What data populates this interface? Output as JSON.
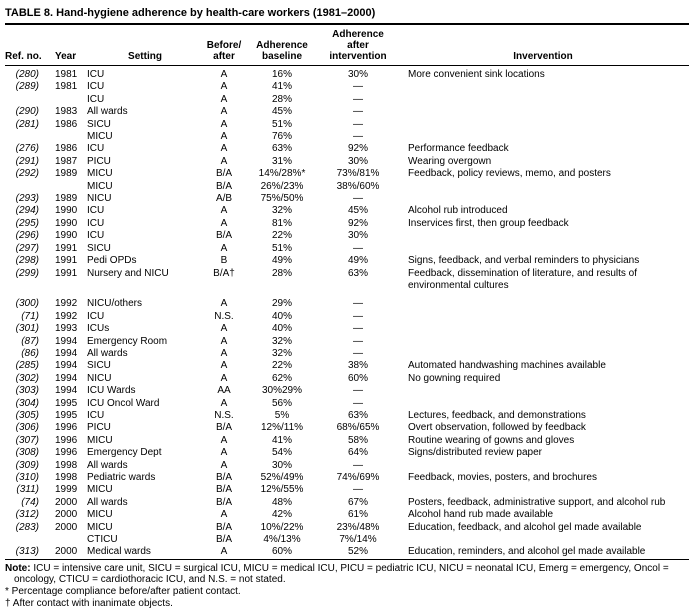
{
  "title": "TABLE 8. Hand-hygiene adherence by health-care workers (1981–2000)",
  "table": {
    "columns": [
      {
        "key": "ref",
        "label": "Ref. no."
      },
      {
        "key": "year",
        "label": "Year"
      },
      {
        "key": "setting",
        "label": "Setting"
      },
      {
        "key": "before_after",
        "label": "Before/\nafter"
      },
      {
        "key": "baseline",
        "label": "Adherence\nbaseline"
      },
      {
        "key": "after",
        "label": "Adherence\nafter\nintervention"
      },
      {
        "key": "intervention",
        "label": "Invervention"
      }
    ],
    "rows": [
      {
        "ref": "(280)",
        "year": "1981",
        "setting": "ICU",
        "before_after": "A",
        "baseline": "16%",
        "after": "30%",
        "intervention": "More convenient sink locations"
      },
      {
        "ref": "(289)",
        "year": "1981",
        "setting": "ICU",
        "before_after": "A",
        "baseline": "41%",
        "after": "—",
        "intervention": ""
      },
      {
        "ref": "",
        "year": "",
        "setting": "ICU",
        "before_after": "A",
        "baseline": "28%",
        "after": "—",
        "intervention": ""
      },
      {
        "ref": "(290)",
        "year": "1983",
        "setting": "All wards",
        "before_after": "A",
        "baseline": "45%",
        "after": "—",
        "intervention": ""
      },
      {
        "ref": "(281)",
        "year": "1986",
        "setting": "SICU",
        "before_after": "A",
        "baseline": "51%",
        "after": "—",
        "intervention": ""
      },
      {
        "ref": "",
        "year": "",
        "setting": "MICU",
        "before_after": "A",
        "baseline": "76%",
        "after": "—",
        "intervention": ""
      },
      {
        "ref": "(276)",
        "year": "1986",
        "setting": "ICU",
        "before_after": "A",
        "baseline": "63%",
        "after": "92%",
        "intervention": "Performance feedback"
      },
      {
        "ref": "(291)",
        "year": "1987",
        "setting": "PICU",
        "before_after": "A",
        "baseline": "31%",
        "after": "30%",
        "intervention": "Wearing overgown"
      },
      {
        "ref": "(292)",
        "year": "1989",
        "setting": "MICU",
        "before_after": "B/A",
        "baseline": "14%/28%*",
        "after": "73%/81%",
        "intervention": "Feedback, policy reviews, memo, and posters"
      },
      {
        "ref": "",
        "year": "",
        "setting": "MICU",
        "before_after": "B/A",
        "baseline": "26%/23%",
        "after": "38%/60%",
        "intervention": ""
      },
      {
        "ref": "(293)",
        "year": "1989",
        "setting": "NICU",
        "before_after": "A/B",
        "baseline": "75%/50%",
        "after": "—",
        "intervention": ""
      },
      {
        "ref": "(294)",
        "year": "1990",
        "setting": "ICU",
        "before_after": "A",
        "baseline": "32%",
        "after": "45%",
        "intervention": "Alcohol rub introduced"
      },
      {
        "ref": "(295)",
        "year": "1990",
        "setting": "ICU",
        "before_after": "A",
        "baseline": "81%",
        "after": "92%",
        "intervention": "Inservices first, then group feedback"
      },
      {
        "ref": "(296)",
        "year": "1990",
        "setting": "ICU",
        "before_after": "B/A",
        "baseline": "22%",
        "after": "30%",
        "intervention": ""
      },
      {
        "ref": "(297)",
        "year": "1991",
        "setting": "SICU",
        "before_after": "A",
        "baseline": "51%",
        "after": "—",
        "intervention": ""
      },
      {
        "ref": "(298)",
        "year": "1991",
        "setting": "Pedi OPDs",
        "before_after": "B",
        "baseline": "49%",
        "after": "49%",
        "intervention": "Signs, feedback, and verbal reminders to physicians"
      },
      {
        "ref": "(299)",
        "year": "1991",
        "setting": "Nursery and NICU",
        "before_after": "B/A†",
        "baseline": "28%",
        "after": "63%",
        "intervention": "Feedback, dissemination of literature, and results of environmental cultures",
        "gap_after": true
      },
      {
        "ref": "(300)",
        "year": "1992",
        "setting": "NICU/others",
        "before_after": "A",
        "baseline": "29%",
        "after": "—",
        "intervention": ""
      },
      {
        "ref": "(71)",
        "year": "1992",
        "setting": "ICU",
        "before_after": "N.S.",
        "baseline": "40%",
        "after": "—",
        "intervention": ""
      },
      {
        "ref": "(301)",
        "year": "1993",
        "setting": "ICUs",
        "before_after": "A",
        "baseline": "40%",
        "after": "—",
        "intervention": ""
      },
      {
        "ref": "(87)",
        "year": "1994",
        "setting": "Emergency Room",
        "before_after": "A",
        "baseline": "32%",
        "after": "—",
        "intervention": ""
      },
      {
        "ref": "(86)",
        "year": "1994",
        "setting": "All wards",
        "before_after": "A",
        "baseline": "32%",
        "after": "—",
        "intervention": ""
      },
      {
        "ref": "(285)",
        "year": "1994",
        "setting": "SICU",
        "before_after": "A",
        "baseline": "22%",
        "after": "38%",
        "intervention": "Automated handwashing machines available"
      },
      {
        "ref": "(302)",
        "year": "1994",
        "setting": "NICU",
        "before_after": "A",
        "baseline": "62%",
        "after": "60%",
        "intervention": "No gowning required"
      },
      {
        "ref": "(303)",
        "year": "1994",
        "setting": "ICU Wards",
        "before_after": "AA",
        "baseline": "30%29%",
        "after": "—",
        "intervention": ""
      },
      {
        "ref": "(304)",
        "year": "1995",
        "setting": "ICU Oncol Ward",
        "before_after": "A",
        "baseline": "56%",
        "after": "—",
        "intervention": ""
      },
      {
        "ref": "(305)",
        "year": "1995",
        "setting": "ICU",
        "before_after": "N.S.",
        "baseline": "5%",
        "after": "63%",
        "intervention": "Lectures, feedback, and demonstrations"
      },
      {
        "ref": "(306)",
        "year": "1996",
        "setting": "PICU",
        "before_after": "B/A",
        "baseline": "12%/11%",
        "after": "68%/65%",
        "intervention": "Overt observation, followed by feedback"
      },
      {
        "ref": "(307)",
        "year": "1996",
        "setting": "MICU",
        "before_after": "A",
        "baseline": "41%",
        "after": "58%",
        "intervention": "Routine wearing of gowns and gloves"
      },
      {
        "ref": "(308)",
        "year": "1996",
        "setting": "Emergency Dept",
        "before_after": "A",
        "baseline": "54%",
        "after": "64%",
        "intervention": "Signs/distributed review paper"
      },
      {
        "ref": "(309)",
        "year": "1998",
        "setting": "All wards",
        "before_after": "A",
        "baseline": "30%",
        "after": "—",
        "intervention": ""
      },
      {
        "ref": "(310)",
        "year": "1998",
        "setting": "Pediatric wards",
        "before_after": "B/A",
        "baseline": "52%/49%",
        "after": "74%/69%",
        "intervention": "Feedback, movies, posters, and brochures"
      },
      {
        "ref": "(311)",
        "year": "1999",
        "setting": "MICU",
        "before_after": "B/A",
        "baseline": "12%/55%",
        "after": "—",
        "intervention": ""
      },
      {
        "ref": "(74)",
        "year": "2000",
        "setting": "All wards",
        "before_after": "B/A",
        "baseline": "48%",
        "after": "67%",
        "intervention": "Posters, feedback, administrative support, and alcohol rub"
      },
      {
        "ref": "(312)",
        "year": "2000",
        "setting": "MICU",
        "before_after": "A",
        "baseline": "42%",
        "after": "61%",
        "intervention": "Alcohol hand rub made available"
      },
      {
        "ref": "(283)",
        "year": "2000",
        "setting": "MICU",
        "before_after": "B/A",
        "baseline": "10%/22%",
        "after": "23%/48%",
        "intervention": "Education, feedback, and alcohol gel made available"
      },
      {
        "ref": "",
        "year": "",
        "setting": "CTICU",
        "before_after": "B/A",
        "baseline": "4%/13%",
        "after": "7%/14%",
        "intervention": ""
      },
      {
        "ref": "(313)",
        "year": "2000",
        "setting": "Medical wards",
        "before_after": "A",
        "baseline": "60%",
        "after": "52%",
        "intervention": "Education, reminders, and alcohol gel made available"
      }
    ]
  },
  "footnotes": {
    "note_label": "Note:",
    "note_text": " ICU = intensive care unit, SICU = surgical ICU, MICU = medical ICU, PICU = pediatric ICU, NICU = neonatal ICU, Emerg = emergency, Oncol = oncology, CTICU = cardiothoracic ICU, and N.S. = not stated.",
    "asterisk_note": "* Percentage compliance before/after patient contact.",
    "dagger_note": "† After contact with inanimate objects."
  }
}
